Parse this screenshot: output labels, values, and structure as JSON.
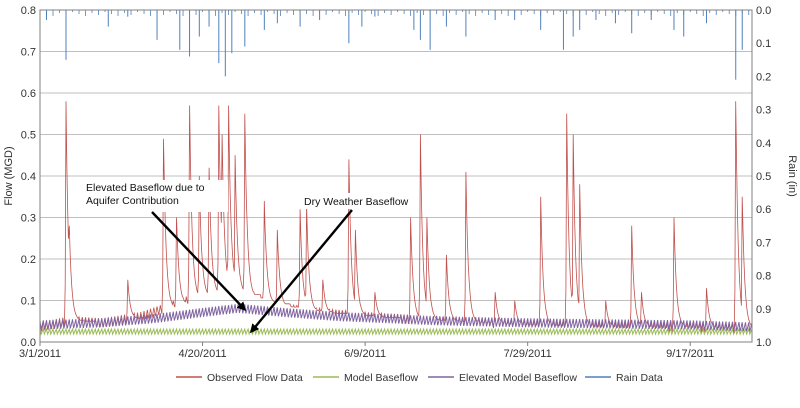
{
  "chart_data": {
    "type": "line",
    "x_axis": {
      "type": "date",
      "min": "2011-03-01",
      "max": "2011-10-06",
      "tick_labels": [
        "3/1/2011",
        "4/20/2011",
        "6/9/2011",
        "7/29/2011",
        "9/17/2011"
      ],
      "tick_dates": [
        "2011-03-01",
        "2011-04-20",
        "2011-06-09",
        "2011-07-29",
        "2011-09-17"
      ]
    },
    "y_axis_left": {
      "label": "Flow (MGD)",
      "min": 0.0,
      "max": 0.8,
      "tick_labels": [
        "0.0",
        "0.1",
        "0.2",
        "0.3",
        "0.4",
        "0.5",
        "0.6",
        "0.7",
        "0.8"
      ]
    },
    "y_axis_right": {
      "label": "Rain (in)",
      "min": 0.0,
      "max": 1.0,
      "reversed": true,
      "tick_labels": [
        "0.0",
        "0.1",
        "0.2",
        "0.3",
        "0.4",
        "0.5",
        "0.6",
        "0.7",
        "0.8",
        "0.9",
        "1.0"
      ]
    },
    "grid": true,
    "legend_position": "bottom",
    "series": [
      {
        "name": "Observed Flow Data",
        "axis": "left",
        "color": "#c0504d",
        "base": [
          [
            "2011-03-01",
            0.035
          ],
          [
            "2011-03-10",
            0.05
          ],
          [
            "2011-03-20",
            0.045
          ],
          [
            "2011-04-01",
            0.06
          ],
          [
            "2011-04-10",
            0.085
          ],
          [
            "2011-04-20",
            0.11
          ],
          [
            "2011-04-28",
            0.12
          ],
          [
            "2011-05-05",
            0.1
          ],
          [
            "2011-05-15",
            0.08
          ],
          [
            "2011-05-25",
            0.07
          ],
          [
            "2011-06-09",
            0.06
          ],
          [
            "2011-07-01",
            0.05
          ],
          [
            "2011-07-29",
            0.04
          ],
          [
            "2011-08-20",
            0.035
          ],
          [
            "2011-09-17",
            0.035
          ],
          [
            "2011-10-06",
            0.03
          ]
        ],
        "peaks": [
          [
            "2011-03-09",
            0.58
          ],
          [
            "2011-03-10",
            0.28
          ],
          [
            "2011-03-28",
            0.15
          ],
          [
            "2011-04-08",
            0.49
          ],
          [
            "2011-04-12",
            0.3
          ],
          [
            "2011-04-16",
            0.57
          ],
          [
            "2011-04-19",
            0.4
          ],
          [
            "2011-04-22",
            0.42
          ],
          [
            "2011-04-25",
            0.57
          ],
          [
            "2011-04-26",
            0.5
          ],
          [
            "2011-04-28",
            0.57
          ],
          [
            "2011-04-30",
            0.45
          ],
          [
            "2011-05-03",
            0.55
          ],
          [
            "2011-05-09",
            0.34
          ],
          [
            "2011-05-13",
            0.27
          ],
          [
            "2011-05-20",
            0.32
          ],
          [
            "2011-05-22",
            0.33
          ],
          [
            "2011-05-27",
            0.15
          ],
          [
            "2011-06-04",
            0.44
          ],
          [
            "2011-06-06",
            0.27
          ],
          [
            "2011-06-12",
            0.12
          ],
          [
            "2011-06-23",
            0.3
          ],
          [
            "2011-06-26",
            0.5
          ],
          [
            "2011-06-28",
            0.3
          ],
          [
            "2011-07-04",
            0.21
          ],
          [
            "2011-07-10",
            0.41
          ],
          [
            "2011-07-19",
            0.12
          ],
          [
            "2011-07-25",
            0.1
          ],
          [
            "2011-08-02",
            0.35
          ],
          [
            "2011-08-10",
            0.55
          ],
          [
            "2011-08-12",
            0.5
          ],
          [
            "2011-08-14",
            0.38
          ],
          [
            "2011-08-22",
            0.1
          ],
          [
            "2011-08-30",
            0.28
          ],
          [
            "2011-09-02",
            0.12
          ],
          [
            "2011-09-12",
            0.3
          ],
          [
            "2011-09-22",
            0.13
          ],
          [
            "2011-10-01",
            0.58
          ],
          [
            "2011-10-03",
            0.35
          ]
        ]
      },
      {
        "name": "Model Baseflow",
        "axis": "left",
        "color": "#9bbb59",
        "base": [
          [
            "2011-03-01",
            0.025
          ],
          [
            "2011-10-06",
            0.025
          ]
        ],
        "amplitude": 0.006
      },
      {
        "name": "Elevated Model Baseflow",
        "axis": "left",
        "color": "#8064a2",
        "base": [
          [
            "2011-03-01",
            0.04
          ],
          [
            "2011-03-20",
            0.045
          ],
          [
            "2011-04-05",
            0.055
          ],
          [
            "2011-04-20",
            0.07
          ],
          [
            "2011-05-01",
            0.08
          ],
          [
            "2011-05-15",
            0.07
          ],
          [
            "2011-06-01",
            0.06
          ],
          [
            "2011-07-01",
            0.05
          ],
          [
            "2011-07-29",
            0.045
          ],
          [
            "2011-09-17",
            0.04
          ],
          [
            "2011-10-06",
            0.035
          ]
        ],
        "amplitude": 0.012
      },
      {
        "name": "Rain Data",
        "axis": "right",
        "color": "#4f81bd",
        "events": [
          [
            "2011-03-03",
            0.03
          ],
          [
            "2011-03-09",
            0.15
          ],
          [
            "2011-03-22",
            0.05
          ],
          [
            "2011-03-28",
            0.02
          ],
          [
            "2011-04-06",
            0.09
          ],
          [
            "2011-04-13",
            0.12
          ],
          [
            "2011-04-16",
            0.14
          ],
          [
            "2011-04-19",
            0.08
          ],
          [
            "2011-04-22",
            0.05
          ],
          [
            "2011-04-25",
            0.16
          ],
          [
            "2011-04-27",
            0.2
          ],
          [
            "2011-04-29",
            0.13
          ],
          [
            "2011-05-03",
            0.11
          ],
          [
            "2011-05-09",
            0.06
          ],
          [
            "2011-05-13",
            0.04
          ],
          [
            "2011-05-20",
            0.05
          ],
          [
            "2011-05-26",
            0.03
          ],
          [
            "2011-06-04",
            0.1
          ],
          [
            "2011-06-08",
            0.05
          ],
          [
            "2011-06-12",
            0.02
          ],
          [
            "2011-06-24",
            0.06
          ],
          [
            "2011-06-26",
            0.09
          ],
          [
            "2011-06-29",
            0.12
          ],
          [
            "2011-07-04",
            0.05
          ],
          [
            "2011-07-10",
            0.08
          ],
          [
            "2011-07-19",
            0.03
          ],
          [
            "2011-07-25",
            0.03
          ],
          [
            "2011-08-02",
            0.06
          ],
          [
            "2011-08-09",
            0.12
          ],
          [
            "2011-08-12",
            0.08
          ],
          [
            "2011-08-14",
            0.06
          ],
          [
            "2011-08-19",
            0.03
          ],
          [
            "2011-08-25",
            0.04
          ],
          [
            "2011-08-30",
            0.07
          ],
          [
            "2011-09-05",
            0.03
          ],
          [
            "2011-09-12",
            0.06
          ],
          [
            "2011-09-15",
            0.08
          ],
          [
            "2011-09-22",
            0.04
          ],
          [
            "2011-10-01",
            0.21
          ],
          [
            "2011-10-03",
            0.12
          ]
        ]
      }
    ],
    "annotations": [
      {
        "lines": [
          "Elevated Baseflow due to",
          "Aquifer Contribution"
        ],
        "target": [
          "2011-05-03",
          0.078
        ]
      },
      {
        "lines": [
          "Dry Weather Baseflow"
        ],
        "target": [
          "2011-05-05",
          0.025
        ]
      }
    ]
  }
}
